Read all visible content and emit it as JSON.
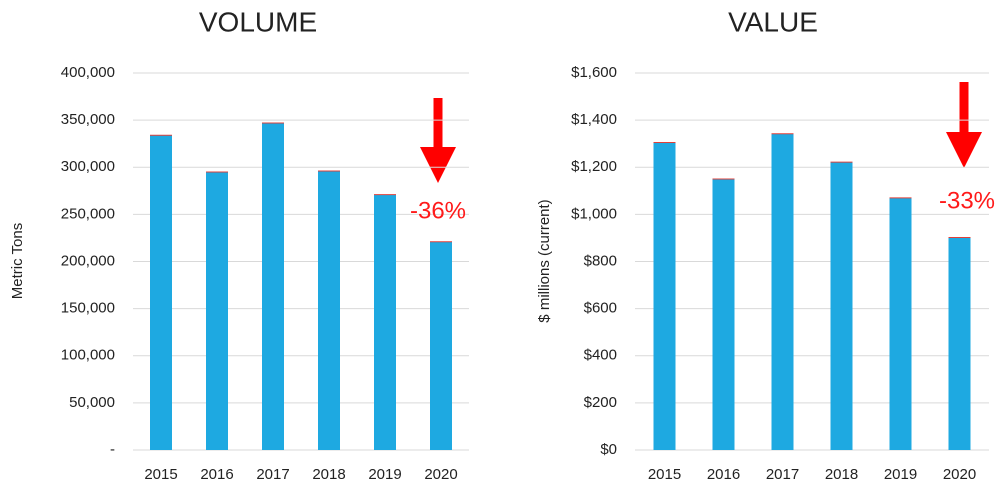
{
  "chart_data": [
    {
      "type": "bar",
      "title": "VOLUME",
      "ylabel": "Metric Tons",
      "categories": [
        "2015",
        "2016",
        "2017",
        "2018",
        "2019",
        "2020"
      ],
      "values": [
        334000,
        295000,
        347000,
        296000,
        271000,
        221000
      ],
      "color": "#1ea9e1",
      "ylim": [
        0,
        400000
      ],
      "yticks": [
        {
          "value": 0,
          "label": "-"
        },
        {
          "value": 50000,
          "label": "50,000"
        },
        {
          "value": 100000,
          "label": "100,000"
        },
        {
          "value": 150000,
          "label": "150,000"
        },
        {
          "value": 200000,
          "label": "200,000"
        },
        {
          "value": 250000,
          "label": "250,000"
        },
        {
          "value": 300000,
          "label": "300,000"
        },
        {
          "value": 350000,
          "label": "350,000"
        },
        {
          "value": 400000,
          "label": "400,000"
        }
      ],
      "grid": true,
      "annotation": "-36%"
    },
    {
      "type": "bar",
      "title": "VALUE",
      "ylabel": "$ millions (current)",
      "categories": [
        "2015",
        "2016",
        "2017",
        "2018",
        "2019",
        "2020"
      ],
      "values": [
        1305,
        1150,
        1342,
        1222,
        1070,
        902
      ],
      "color": "#1ea9e1",
      "ylim": [
        0,
        1600
      ],
      "yticks": [
        {
          "value": 0,
          "label": "$0"
        },
        {
          "value": 200,
          "label": "$200"
        },
        {
          "value": 400,
          "label": "$400"
        },
        {
          "value": 600,
          "label": "$600"
        },
        {
          "value": 800,
          "label": "$800"
        },
        {
          "value": 1000,
          "label": "$1,000"
        },
        {
          "value": 1200,
          "label": "$1,200"
        },
        {
          "value": 1400,
          "label": "$1,400"
        },
        {
          "value": 1600,
          "label": "$1,600"
        }
      ],
      "grid": true,
      "annotation": "-33%"
    }
  ]
}
